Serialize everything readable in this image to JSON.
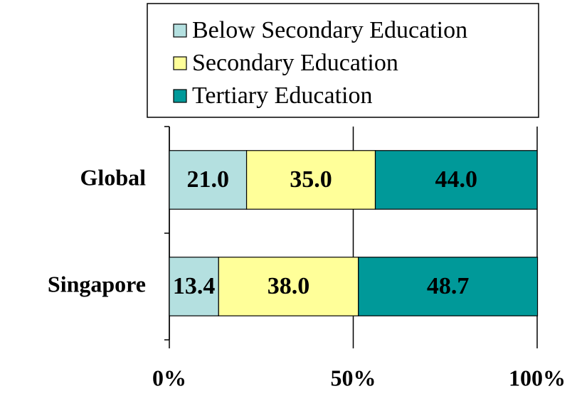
{
  "chart_data": {
    "type": "stacked_bar_horizontal",
    "categories": [
      "Global",
      "Singapore"
    ],
    "series": [
      {
        "name": "Below Secondary Education",
        "color": "#b4e0e0",
        "values": [
          21,
          13.4
        ],
        "value_labels": [
          "21.0",
          "13.4"
        ]
      },
      {
        "name": "Secondary Education",
        "color": "#ffff99",
        "values": [
          35,
          38
        ],
        "value_labels": [
          "35.0",
          "38.0"
        ]
      },
      {
        "name": "Tertiary Education",
        "color": "#009999",
        "values": [
          44,
          48.7
        ],
        "value_labels": [
          "44.0",
          "48.7"
        ]
      }
    ],
    "xlim": [
      0,
      100
    ],
    "xticks": [
      {
        "value": 0,
        "label": "0%"
      },
      {
        "value": 50,
        "label": "50%"
      },
      {
        "value": 100,
        "label": "100%"
      }
    ],
    "grid": true
  }
}
